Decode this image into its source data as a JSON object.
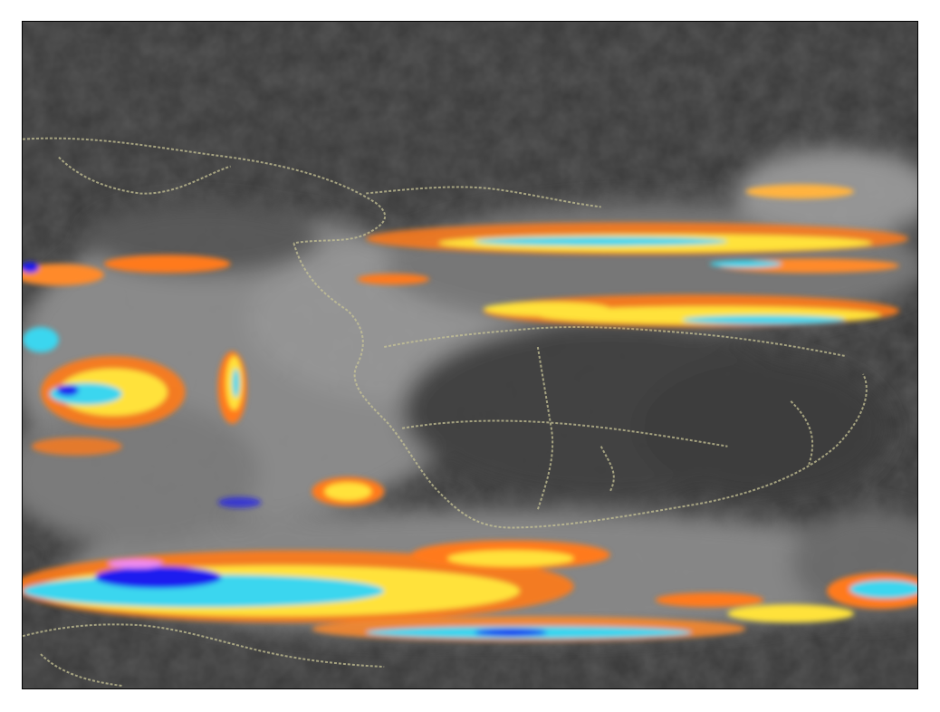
{
  "image": {
    "kind": "false-color infrared satellite image",
    "palette": {
      "background_dark": "#3a3a3a",
      "cloud_gray": "#8a8a8a",
      "cloud_light": "#a8a8a8",
      "border_lines": "#c8c496",
      "orange": "#ff7a1a",
      "yellow": "#ffe23a",
      "cyan": "#3ad6ef",
      "blue": "#1a1aef",
      "magenta": "#ef8aef"
    },
    "frame_border_color": "#000000"
  }
}
